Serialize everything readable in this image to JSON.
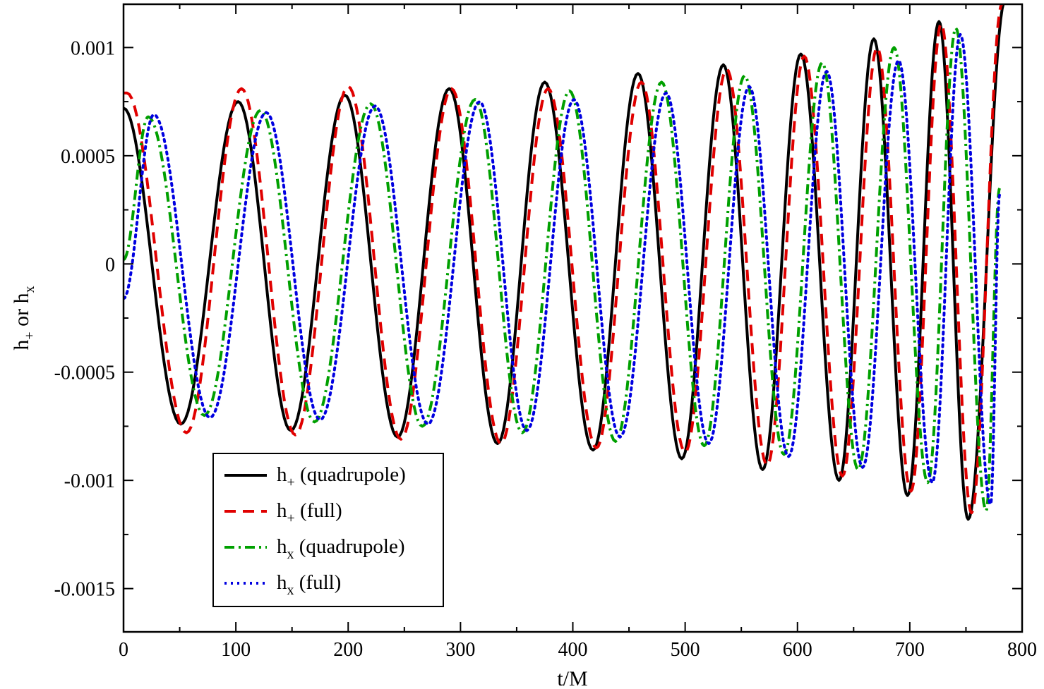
{
  "chart_data": {
    "type": "line",
    "title": "",
    "xlabel": "t/M",
    "ylabel": {
      "main": "h",
      "sub1": "+",
      "middle": " or h",
      "sub2": "x"
    },
    "xlim": [
      0,
      800
    ],
    "ylim": [
      -0.0017,
      0.0012
    ],
    "x_ticks": [
      {
        "value": 0,
        "label": "0"
      },
      {
        "value": 100,
        "label": "100"
      },
      {
        "value": 200,
        "label": "200"
      },
      {
        "value": 300,
        "label": "300"
      },
      {
        "value": 400,
        "label": "400"
      },
      {
        "value": 500,
        "label": "500"
      },
      {
        "value": 600,
        "label": "600"
      },
      {
        "value": 700,
        "label": "700"
      },
      {
        "value": 800,
        "label": "800"
      }
    ],
    "y_ticks": [
      {
        "value": 0.001,
        "label": "0.001"
      },
      {
        "value": 0.0005,
        "label": "0.0005"
      },
      {
        "value": 0,
        "label": "0"
      },
      {
        "value": -0.0005,
        "label": "-0.0005"
      },
      {
        "value": -0.001,
        "label": "-0.001"
      },
      {
        "value": -0.0015,
        "label": "-0.0015"
      }
    ],
    "grid": false,
    "legend_position": "bottom-left",
    "series": [
      {
        "key": "hplus_quad",
        "name": {
          "main": "h",
          "sub": "+",
          "rest": " (quadrupole)"
        },
        "color": "#000000",
        "style": "solid",
        "maxima": [
          [
            0,
            0.00072
          ],
          [
            102,
            0.00075
          ],
          [
            197,
            0.00078
          ],
          [
            290,
            0.00081
          ],
          [
            375,
            0.00084
          ],
          [
            458,
            0.00088
          ],
          [
            534,
            0.00092
          ],
          [
            603,
            0.00097
          ],
          [
            668,
            0.00104
          ],
          [
            726,
            0.00112
          ],
          [
            785,
            0.00122
          ]
        ],
        "minima": [
          [
            51,
            -0.00074
          ],
          [
            149,
            -0.00077
          ],
          [
            244,
            -0.0008
          ],
          [
            333,
            -0.00083
          ],
          [
            418,
            -0.00086
          ],
          [
            497,
            -0.0009
          ],
          [
            569,
            -0.00095
          ],
          [
            637,
            -0.001
          ],
          [
            698,
            -0.00107
          ],
          [
            752,
            -0.00118
          ]
        ]
      },
      {
        "key": "hplus_full",
        "name": {
          "main": "h",
          "sub": "+",
          "rest": " (full)"
        },
        "color": "#e00000",
        "style": "dashed",
        "maxima": [
          [
            3,
            0.00079
          ],
          [
            105,
            0.00081
          ],
          [
            200,
            0.00082
          ],
          [
            292,
            0.00081
          ],
          [
            378,
            0.00081
          ],
          [
            461,
            0.00084
          ],
          [
            537,
            0.0009
          ],
          [
            606,
            0.00096
          ],
          [
            671,
            0.001
          ],
          [
            728,
            0.00111
          ],
          [
            782,
            0.0012
          ]
        ],
        "minima": [
          [
            56,
            -0.00078
          ],
          [
            153,
            -0.00079
          ],
          [
            247,
            -0.00081
          ],
          [
            336,
            -0.00083
          ],
          [
            421,
            -0.00085
          ],
          [
            500,
            -0.00087
          ],
          [
            573,
            -0.00093
          ],
          [
            640,
            -0.00098
          ],
          [
            701,
            -0.00105
          ],
          [
            755,
            -0.00115
          ]
        ]
      },
      {
        "key": "hx_quad",
        "name": {
          "main": "h",
          "sub": "x",
          "rest": " (quadrupole)"
        },
        "color": "#00a000",
        "style": "dashdot",
        "x_end": 780,
        "start": [
          0,
          2e-05
        ],
        "maxima": [
          [
            22,
            0.00068
          ],
          [
            122,
            0.00071
          ],
          [
            220,
            0.00074
          ],
          [
            313,
            0.00076
          ],
          [
            397,
            0.0008
          ],
          [
            479,
            0.00084
          ],
          [
            553,
            0.00087
          ],
          [
            622,
            0.00093
          ],
          [
            686,
            0.001
          ],
          [
            741,
            0.00109
          ]
        ],
        "minima": [
          [
            72,
            -0.0007
          ],
          [
            170,
            -0.00073
          ],
          [
            266,
            -0.00075
          ],
          [
            355,
            -0.00078
          ],
          [
            438,
            -0.00082
          ],
          [
            517,
            -0.00084
          ],
          [
            588,
            -0.00088
          ],
          [
            654,
            -0.00095
          ],
          [
            716,
            -0.00101
          ],
          [
            768,
            -0.00114
          ],
          [
            780,
            0.00035
          ]
        ]
      },
      {
        "key": "hx_full",
        "name": {
          "main": "h",
          "sub": "x",
          "rest": " (full)"
        },
        "color": "#0000e0",
        "style": "dotted",
        "x_end": 780,
        "start": [
          0,
          -0.00016
        ],
        "maxima": [
          [
            27,
            0.00069
          ],
          [
            127,
            0.0007
          ],
          [
            224,
            0.00073
          ],
          [
            317,
            0.00075
          ],
          [
            401,
            0.00076
          ],
          [
            483,
            0.00079
          ],
          [
            557,
            0.00082
          ],
          [
            626,
            0.00089
          ],
          [
            690,
            0.00094
          ],
          [
            745,
            0.00106
          ]
        ],
        "minima": [
          [
            77,
            -0.00071
          ],
          [
            175,
            -0.00072
          ],
          [
            271,
            -0.00074
          ],
          [
            359,
            -0.00077
          ],
          [
            442,
            -0.0008
          ],
          [
            521,
            -0.00083
          ],
          [
            592,
            -0.00089
          ],
          [
            658,
            -0.00094
          ],
          [
            720,
            -0.00101
          ],
          [
            772,
            -0.00111
          ],
          [
            780,
            0.00032
          ]
        ]
      }
    ]
  }
}
